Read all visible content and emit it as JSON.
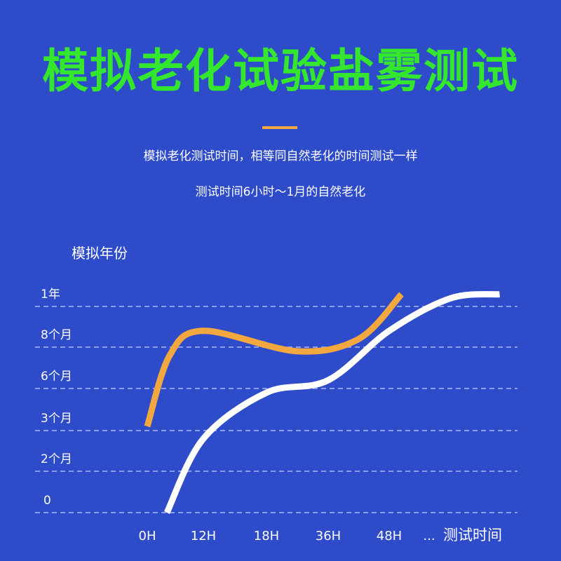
{
  "title": "模拟老化试验盐雾测试",
  "description": [
    "模拟老化测试时间，相等同自然老化的时间测试一样",
    "测试时间6小时～1月的自然老化"
  ],
  "colors": {
    "background": "#2e4bc9",
    "title": "#35e62e",
    "accent": "#f2a83f",
    "grid": "#8b9fe6"
  },
  "chart_data": {
    "type": "line",
    "ylabel": "模拟年份",
    "xlabel": "测试时间",
    "x_ellipsis": "...",
    "categories": [
      "0H",
      "12H",
      "18H",
      "36H",
      "48H"
    ],
    "y_ticks": [
      "0",
      "2个月",
      "3个月",
      "6个月",
      "8个月",
      "1年"
    ],
    "grid": true,
    "series": [
      {
        "color": "#f2a83f",
        "points": [
          [
            0,
            2.1
          ],
          [
            0.4,
            3.8
          ],
          [
            1,
            4.4
          ],
          [
            2.5,
            3.9
          ],
          [
            3.5,
            4.2
          ],
          [
            4.2,
            5.3
          ]
        ]
      },
      {
        "color": "#ffffff",
        "points": [
          [
            0.35,
            0
          ],
          [
            1,
            1.8
          ],
          [
            2,
            2.9
          ],
          [
            3,
            3.2
          ],
          [
            4,
            4.4
          ],
          [
            5,
            5.2
          ],
          [
            5.8,
            5.3
          ]
        ]
      }
    ]
  }
}
